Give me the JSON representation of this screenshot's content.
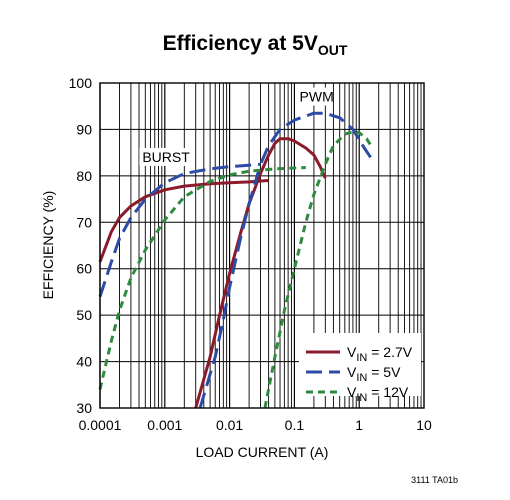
{
  "chart_data": {
    "type": "line",
    "title_main": "Efficiency at 5V",
    "title_sub": "OUT",
    "xlabel": "LOAD CURRENT (A)",
    "ylabel": "EFFICIENCY (%)",
    "x_scale": "log",
    "xlim": [
      0.0001,
      10
    ],
    "ylim": [
      30,
      100
    ],
    "x_ticks": [
      0.0001,
      0.001,
      0.01,
      0.1,
      1,
      10
    ],
    "x_tick_labels": [
      "0.0001",
      "0.001",
      "0.01",
      "0.1",
      "1",
      "10"
    ],
    "y_ticks": [
      30,
      40,
      50,
      60,
      70,
      80,
      90,
      100
    ],
    "y_tick_labels": [
      "30",
      "40",
      "50",
      "60",
      "70",
      "80",
      "90",
      "100"
    ],
    "grid": true,
    "legend_position": "bottom-right",
    "annotations": [
      {
        "text": "BURST",
        "x": 0.00045,
        "y": 83
      },
      {
        "text": "PWM",
        "x": 0.12,
        "y": 96
      }
    ],
    "series": [
      {
        "name": "V_IN = 2.7V",
        "name_main": "V",
        "name_sub": "IN",
        "name_rest": " = 2.7V",
        "color": "#8b1a2b",
        "dash": "solid",
        "segments": [
          [
            [
              0.0001,
              61.5
            ],
            [
              0.00015,
              68
            ],
            [
              0.0002,
              71
            ],
            [
              0.0003,
              73.5
            ],
            [
              0.0005,
              75.5
            ],
            [
              0.001,
              77
            ],
            [
              0.002,
              77.8
            ],
            [
              0.005,
              78.3
            ],
            [
              0.01,
              78.5
            ],
            [
              0.02,
              78.7
            ],
            [
              0.04,
              79
            ]
          ],
          [
            [
              0.003,
              30
            ],
            [
              0.005,
              41
            ],
            [
              0.007,
              50
            ],
            [
              0.01,
              59
            ],
            [
              0.015,
              68
            ],
            [
              0.02,
              74
            ],
            [
              0.03,
              80.5
            ],
            [
              0.04,
              84.5
            ],
            [
              0.05,
              87
            ],
            [
              0.06,
              88
            ],
            [
              0.08,
              88
            ],
            [
              0.1,
              87.5
            ],
            [
              0.15,
              86
            ],
            [
              0.2,
              84.5
            ],
            [
              0.25,
              82
            ],
            [
              0.3,
              79.5
            ]
          ]
        ]
      },
      {
        "name": "V_IN = 5V",
        "name_main": "V",
        "name_sub": "IN",
        "name_rest": " = 5V",
        "color": "#2b4ba6",
        "dash": "long",
        "segments": [
          [
            [
              0.0001,
              54
            ],
            [
              0.00015,
              61.5
            ],
            [
              0.0002,
              66.5
            ],
            [
              0.0003,
              71
            ],
            [
              0.0005,
              75
            ],
            [
              0.001,
              78.5
            ],
            [
              0.002,
              80.5
            ],
            [
              0.005,
              81.5
            ],
            [
              0.01,
              82
            ],
            [
              0.02,
              82.3
            ],
            [
              0.03,
              82.5
            ]
          ],
          [
            [
              0.0035,
              30
            ],
            [
              0.006,
              41
            ],
            [
              0.008,
              49
            ],
            [
              0.01,
              56
            ],
            [
              0.015,
              67
            ],
            [
              0.02,
              74
            ],
            [
              0.03,
              82.5
            ],
            [
              0.04,
              86.5
            ],
            [
              0.06,
              90
            ],
            [
              0.1,
              92
            ],
            [
              0.2,
              93.5
            ],
            [
              0.3,
              93.5
            ],
            [
              0.5,
              92.5
            ],
            [
              0.8,
              90
            ],
            [
              1.2,
              86
            ],
            [
              1.5,
              84
            ]
          ]
        ]
      },
      {
        "name": "V_IN = 12V",
        "name_main": "V",
        "name_sub": "IN",
        "name_rest": " = 12V",
        "color": "#2e8b3e",
        "dash": "short",
        "segments": [
          [
            [
              0.0001,
              34
            ],
            [
              0.00015,
              44.5
            ],
            [
              0.0002,
              51
            ],
            [
              0.0003,
              58
            ],
            [
              0.0005,
              64
            ],
            [
              0.001,
              70.5
            ],
            [
              0.002,
              75.5
            ],
            [
              0.005,
              78.8
            ],
            [
              0.01,
              80.2
            ],
            [
              0.02,
              81
            ],
            [
              0.05,
              81.5
            ],
            [
              0.1,
              81.7
            ],
            [
              0.15,
              81.8
            ]
          ],
          [
            [
              0.035,
              30
            ],
            [
              0.05,
              41
            ],
            [
              0.07,
              51
            ],
            [
              0.1,
              60
            ],
            [
              0.15,
              70
            ],
            [
              0.2,
              76
            ],
            [
              0.3,
              82.5
            ],
            [
              0.4,
              86.5
            ],
            [
              0.6,
              89
            ],
            [
              0.8,
              89.5
            ],
            [
              1.0,
              89.3
            ],
            [
              1.3,
              88
            ],
            [
              1.6,
              86
            ]
          ]
        ]
      }
    ]
  },
  "footer": "3111 TA01b"
}
